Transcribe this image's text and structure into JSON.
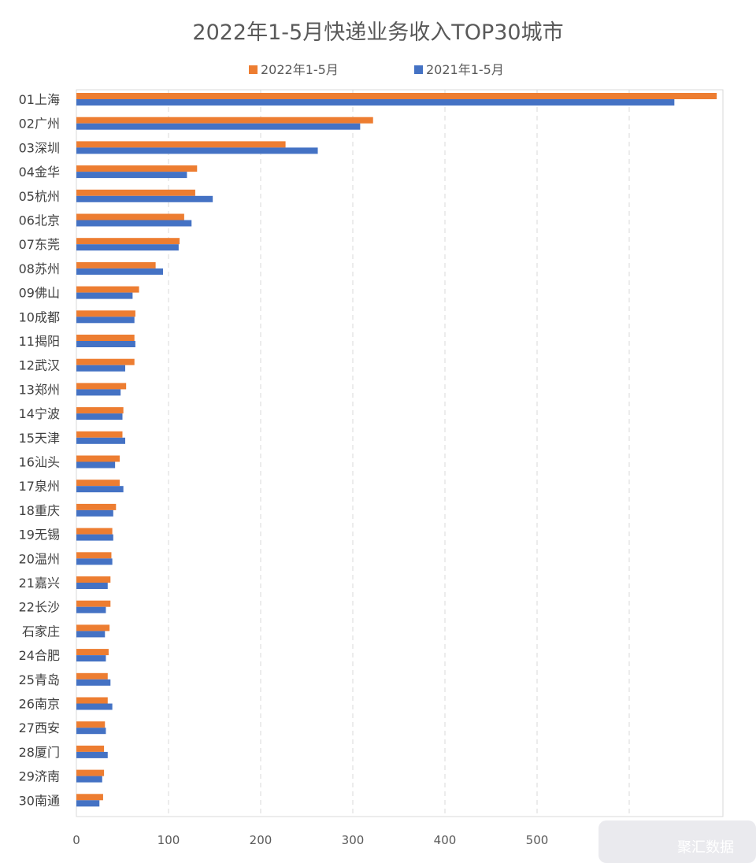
{
  "chart_data": {
    "type": "bar",
    "orientation": "horizontal",
    "title": "2022年1-5月快递业务收入TOP30城市",
    "categories": [
      "01上海",
      "02广州",
      "03深圳",
      "04金华",
      "05杭州",
      "06北京",
      "07东莞",
      "08苏州",
      "09佛山",
      "10成都",
      "11揭阳",
      "12武汉",
      "13郑州",
      "14宁波",
      "15天津",
      "16汕头",
      "17泉州",
      "18重庆",
      "19无锡",
      "20温州",
      "21嘉兴",
      "22长沙",
      "石家庄",
      "24合肥",
      "25青岛",
      "26南京",
      "27西安",
      "28厦门",
      "29济南",
      "30南通"
    ],
    "series": [
      {
        "name": "2022年1-5月",
        "color": "#ED7D31",
        "values": [
          695,
          322,
          227,
          131,
          129,
          117,
          112,
          86,
          68,
          64,
          63,
          63,
          54,
          51,
          50,
          47,
          47,
          43,
          39,
          38,
          37,
          37,
          36,
          35,
          34,
          34,
          31,
          30,
          30,
          29
        ]
      },
      {
        "name": "2021年1-5月",
        "color": "#4472C4",
        "values": [
          649,
          308,
          262,
          120,
          148,
          125,
          111,
          94,
          61,
          63,
          64,
          53,
          48,
          50,
          53,
          42,
          51,
          40,
          40,
          39,
          34,
          32,
          31,
          32,
          37,
          39,
          32,
          34,
          28,
          25
        ]
      }
    ],
    "xticks": [
      0,
      100,
      200,
      300,
      400,
      500
    ],
    "xlim": [
      0,
      700
    ],
    "grid": "vertical dashed",
    "legend_position": "top"
  },
  "watermark": "聚汇数据"
}
